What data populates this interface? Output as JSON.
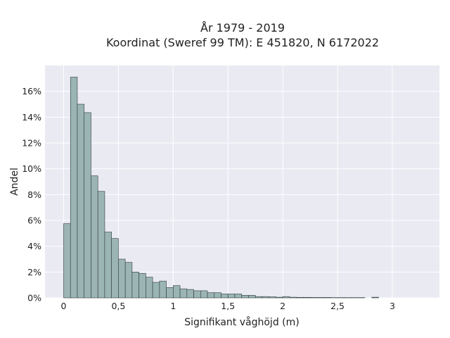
{
  "chart_data": {
    "type": "bar",
    "title": "År 1979 - 2019",
    "subtitle": "Koordinat (Sweref 99 TM): E 451820, N 6172022",
    "xlabel": "Signifikant våghöjd (m)",
    "ylabel": "Andel",
    "xlim": [
      -0.17,
      3.43
    ],
    "ylim": [
      0,
      18
    ],
    "grid": true,
    "bin_width": 0.0625,
    "x_ticks": [
      {
        "value": 0,
        "label": "0"
      },
      {
        "value": 0.5,
        "label": "0,5"
      },
      {
        "value": 1,
        "label": "1"
      },
      {
        "value": 1.5,
        "label": "1,5"
      },
      {
        "value": 2,
        "label": "2"
      },
      {
        "value": 2.5,
        "label": "2,5"
      },
      {
        "value": 3,
        "label": "3"
      }
    ],
    "y_ticks": [
      {
        "value": 0,
        "label": "0%"
      },
      {
        "value": 2,
        "label": "2%"
      },
      {
        "value": 4,
        "label": "4%"
      },
      {
        "value": 6,
        "label": "6%"
      },
      {
        "value": 8,
        "label": "8%"
      },
      {
        "value": 10,
        "label": "10%"
      },
      {
        "value": 12,
        "label": "12%"
      },
      {
        "value": 14,
        "label": "14%"
      },
      {
        "value": 16,
        "label": "16%"
      }
    ],
    "bins_start": [
      0,
      0.0625,
      0.125,
      0.1875,
      0.25,
      0.3125,
      0.375,
      0.4375,
      0.5,
      0.5625,
      0.625,
      0.6875,
      0.75,
      0.8125,
      0.875,
      0.9375,
      1.0,
      1.0625,
      1.125,
      1.1875,
      1.25,
      1.3125,
      1.375,
      1.4375,
      1.5,
      1.5625,
      1.625,
      1.6875,
      1.75,
      1.8125,
      1.875,
      1.9375,
      2.0,
      2.0625,
      2.125,
      2.1875,
      2.25,
      2.3125,
      2.375,
      2.4375,
      2.5,
      2.5625,
      2.625,
      2.6875,
      2.75,
      2.8125
    ],
    "values": [
      5.75,
      17.1,
      15.0,
      14.35,
      9.45,
      8.25,
      5.1,
      4.6,
      3.0,
      2.75,
      2.0,
      1.9,
      1.6,
      1.2,
      1.3,
      0.8,
      0.95,
      0.7,
      0.65,
      0.55,
      0.55,
      0.4,
      0.4,
      0.3,
      0.3,
      0.3,
      0.2,
      0.2,
      0.1,
      0.1,
      0.08,
      0.05,
      0.1,
      0.05,
      0.04,
      0.04,
      0.03,
      0.03,
      0.03,
      0.02,
      0.02,
      0.02,
      0.02,
      0.02,
      0.0,
      0.05
    ],
    "colors": {
      "plot_background": "#eaeaf2",
      "grid": "#ffffff",
      "bar_fill": "#9bb5b4",
      "bar_edge": "#2f3b3b"
    }
  }
}
